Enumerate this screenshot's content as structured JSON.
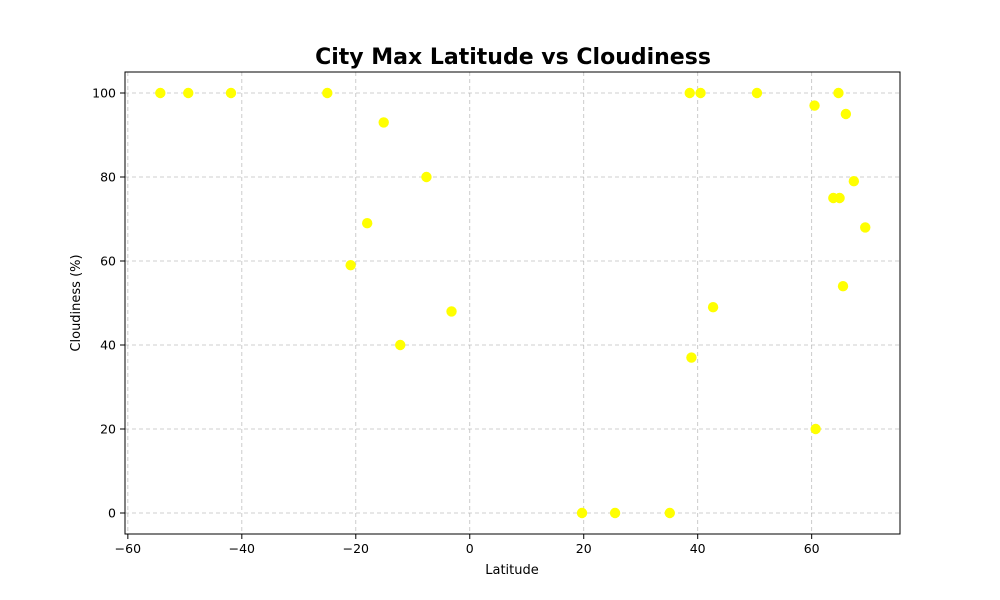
{
  "chart_data": {
    "type": "scatter",
    "title": "City Max Latitude vs Cloudiness",
    "xlabel": "Latitude",
    "ylabel": "Cloudiness (%)",
    "xlim": [
      -60.5,
      75.5
    ],
    "ylim": [
      -5,
      105
    ],
    "xticks": [
      -60,
      -40,
      -20,
      0,
      20,
      40,
      60
    ],
    "yticks": [
      0,
      20,
      40,
      60,
      80,
      100
    ],
    "grid": true,
    "point_color": "#ffff00",
    "points": [
      {
        "x": -54.3,
        "y": 100
      },
      {
        "x": -49.4,
        "y": 100
      },
      {
        "x": -41.9,
        "y": 100
      },
      {
        "x": -25.0,
        "y": 100
      },
      {
        "x": -15.1,
        "y": 93
      },
      {
        "x": -7.6,
        "y": 80
      },
      {
        "x": -18.0,
        "y": 69
      },
      {
        "x": -20.9,
        "y": 59
      },
      {
        "x": -3.2,
        "y": 48
      },
      {
        "x": -12.2,
        "y": 40
      },
      {
        "x": 19.7,
        "y": 0
      },
      {
        "x": 25.5,
        "y": 0
      },
      {
        "x": 35.1,
        "y": 0
      },
      {
        "x": 38.6,
        "y": 100
      },
      {
        "x": 40.5,
        "y": 100
      },
      {
        "x": 50.4,
        "y": 100
      },
      {
        "x": 38.9,
        "y": 37
      },
      {
        "x": 42.7,
        "y": 49
      },
      {
        "x": 60.5,
        "y": 97
      },
      {
        "x": 64.7,
        "y": 100
      },
      {
        "x": 66.0,
        "y": 95
      },
      {
        "x": 67.4,
        "y": 79
      },
      {
        "x": 63.8,
        "y": 75
      },
      {
        "x": 64.9,
        "y": 75
      },
      {
        "x": 69.4,
        "y": 68
      },
      {
        "x": 65.5,
        "y": 54
      },
      {
        "x": 60.7,
        "y": 20
      }
    ]
  }
}
